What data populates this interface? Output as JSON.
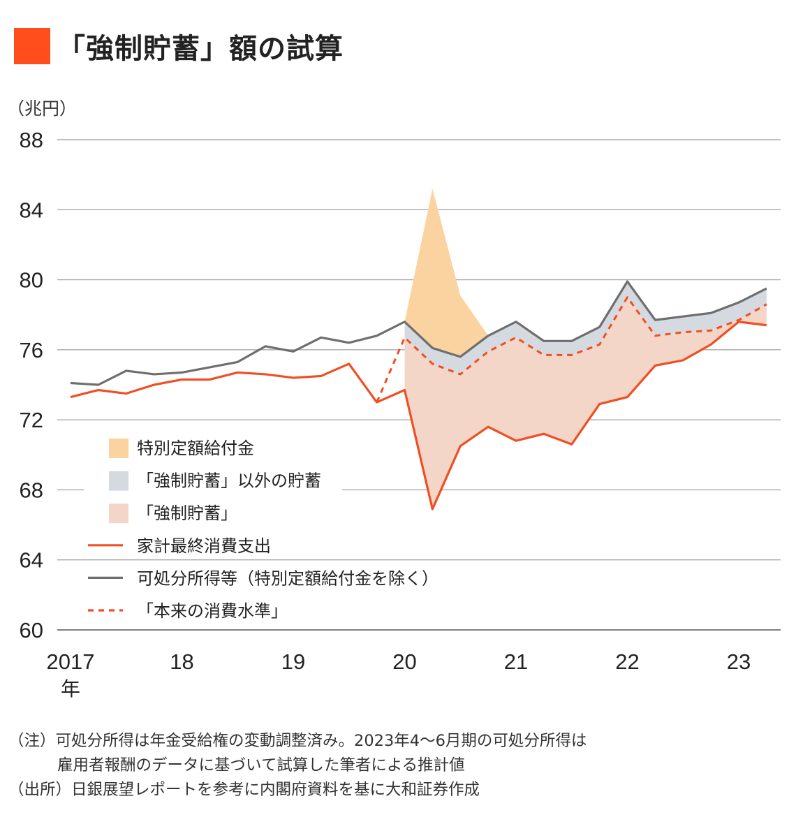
{
  "title": "「強制貯蓄」額の試算",
  "unit_label": "（兆円）",
  "colors": {
    "accent": "#ff4d1c",
    "benefit_fill": "#fbd3a1",
    "other_savings_fill": "#d5d9e0",
    "forced_savings_fill": "#f3d6c7",
    "consumption_line": "#f04e23",
    "income_line": "#6e6e6e",
    "normal_consumption_line": "#f04e23"
  },
  "chart_data": {
    "type": "line",
    "ylim": [
      60,
      88
    ],
    "yticks": [
      "60",
      "64",
      "68",
      "72",
      "76",
      "80",
      "84",
      "88"
    ],
    "xtick_labels": [
      "2017",
      "18",
      "19",
      "20",
      "21",
      "22",
      "23"
    ],
    "x_first_label_suffix": "年",
    "x": [
      "2017Q1",
      "2017Q2",
      "2017Q3",
      "2017Q4",
      "2018Q1",
      "2018Q2",
      "2018Q3",
      "2018Q4",
      "2019Q1",
      "2019Q2",
      "2019Q3",
      "2019Q4",
      "2020Q1",
      "2020Q2",
      "2020Q3",
      "2020Q4",
      "2021Q1",
      "2021Q2",
      "2021Q3",
      "2021Q4",
      "2022Q1",
      "2022Q2",
      "2022Q3",
      "2022Q4",
      "2023Q1",
      "2023Q2"
    ],
    "series": [
      {
        "name": "家計最終消費支出",
        "style": "solid",
        "values": [
          73.3,
          73.7,
          73.5,
          74.0,
          74.3,
          74.3,
          74.7,
          74.6,
          74.4,
          74.5,
          75.2,
          73.0,
          73.7,
          66.9,
          70.5,
          71.6,
          70.8,
          71.2,
          70.6,
          72.9,
          73.3,
          75.1,
          75.4,
          76.3,
          77.6,
          77.4
        ]
      },
      {
        "name": "可処分所得等（特別定額給付金を除く）",
        "style": "solid",
        "values": [
          74.1,
          74.0,
          74.8,
          74.6,
          74.7,
          75.0,
          75.3,
          76.2,
          75.9,
          76.7,
          76.4,
          76.8,
          77.6,
          76.1,
          75.6,
          76.8,
          77.6,
          76.5,
          76.5,
          77.3,
          79.9,
          77.7,
          77.9,
          78.1,
          78.7,
          79.5
        ]
      },
      {
        "name": "「本来の消費水準」",
        "style": "dashed",
        "start_index": 11,
        "values": [
          null,
          null,
          null,
          null,
          null,
          null,
          null,
          null,
          null,
          null,
          null,
          73.0,
          76.7,
          75.2,
          74.6,
          75.9,
          76.7,
          75.7,
          75.7,
          76.3,
          79.0,
          76.8,
          77.0,
          77.1,
          77.7,
          78.6
        ]
      },
      {
        "name": "特別定額給付金",
        "style": "area",
        "indices": [
          12,
          13,
          14,
          15
        ],
        "top": [
          77.6,
          85.2,
          79.1,
          76.8
        ],
        "bottom": [
          77.6,
          76.1,
          75.6,
          76.8
        ]
      }
    ],
    "legend": {
      "placement": "inside-lower-left",
      "items": [
        {
          "label": "特別定額給付金",
          "kind": "area",
          "color": "#fbd3a1"
        },
        {
          "label": "「強制貯蓄」以外の貯蓄",
          "kind": "area",
          "color": "#d5d9e0"
        },
        {
          "label": "「強制貯蓄」",
          "kind": "area",
          "color": "#f3d6c7"
        },
        {
          "label": "家計最終消費支出",
          "kind": "line",
          "color": "#f04e23"
        },
        {
          "label": "可処分所得等（特別定額給付金を除く）",
          "kind": "line",
          "color": "#6e6e6e"
        },
        {
          "label": "「本来の消費水準」",
          "kind": "dashed",
          "color": "#f04e23"
        }
      ]
    },
    "grid": "horizontal"
  },
  "notes": [
    "（注）可処分所得は年金受給権の変動調整済み。2023年4～6月期の可処分所得は",
    "雇用者報酬のデータに基づいて試算した筆者による推計値",
    "（出所）日銀展望レポートを参考に内閣府資料を基に大和証券作成"
  ]
}
